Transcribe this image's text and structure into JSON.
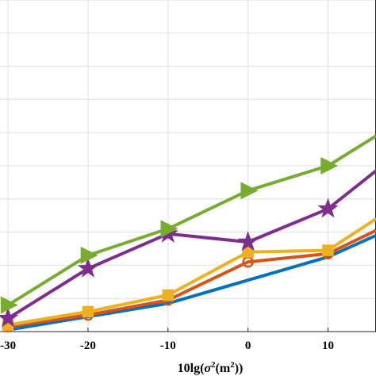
{
  "chart_data": {
    "type": "line",
    "x": [
      -30,
      -20,
      -10,
      0,
      10,
      16
    ],
    "xticks": [
      "-30",
      "-20",
      "-10",
      "0",
      "10"
    ],
    "xlabel": "10lg(σ²(m²))",
    "xlim": [
      -31,
      16
    ],
    "ylim": [
      0,
      10
    ],
    "grid": true,
    "series": [
      {
        "color": "#77ac30",
        "marker": "triangle-right",
        "values": [
          0.8,
          2.3,
          3.1,
          4.25,
          5.0,
          5.9
        ]
      },
      {
        "color": "#7e2f8e",
        "marker": "star",
        "values": [
          0.4,
          1.9,
          2.95,
          2.7,
          3.7,
          4.85
        ]
      },
      {
        "color": "#edb120",
        "marker": "square",
        "values": [
          0.2,
          0.6,
          1.1,
          2.4,
          2.45,
          3.4
        ]
      },
      {
        "color": "#d95319",
        "marker": "circle",
        "values": [
          0.15,
          0.5,
          0.95,
          2.1,
          2.35,
          3.05
        ]
      },
      {
        "color": "#0072bd",
        "marker": "none",
        "values": [
          0.05,
          0.45,
          0.85,
          1.55,
          2.25,
          2.9
        ]
      }
    ]
  }
}
